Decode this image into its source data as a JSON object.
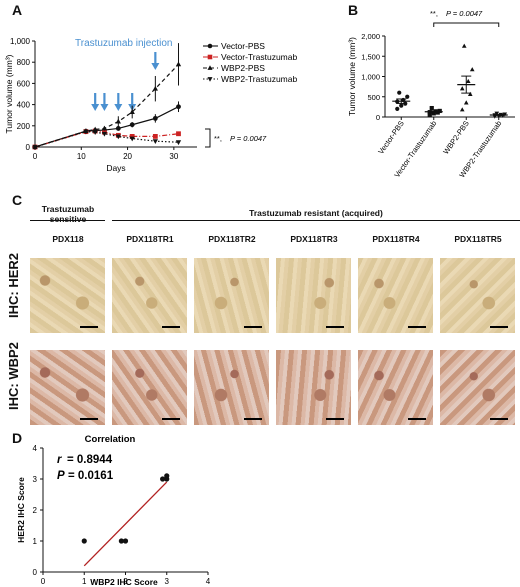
{
  "panel_letters": {
    "a": "A",
    "b": "B",
    "c": "C",
    "d": "D"
  },
  "colors": {
    "injection": "#4a90d0",
    "fit": "#b22222",
    "black": "#111111",
    "red": "#cc2222",
    "he2_tissue": "#d9c79a",
    "wbp2_tissue": "#c79a80"
  },
  "panelA": {
    "injection_label": "Trastuzumab injection",
    "sig_label": "**,",
    "p_label": "P = 0.0047"
  },
  "panelB": {
    "sig_label": "**,",
    "p_label": "P = 0.0047"
  },
  "panelC": {
    "sensitive_header_l1": "Trastuzumab",
    "sensitive_header_l2": "sensitive",
    "resistant_header": "Trastuzumab resistant (acquired)",
    "columns": [
      "PDX118",
      "PDX118TR1",
      "PDX118TR2",
      "PDX118TR3",
      "PDX118TR4",
      "PDX118TR5"
    ],
    "rows": [
      "IHC: HER2",
      "IHC: WBP2"
    ]
  },
  "panelD": {
    "r_label": "r",
    "r_value": "= 0.8944",
    "p_label": "P",
    "p_value": "= 0.0161"
  },
  "chart_data": [
    {
      "type": "line",
      "title": "",
      "xlabel": "Days",
      "ylabel": "Tumor volume (mm³)",
      "xlim": [
        0,
        35
      ],
      "ylim": [
        0,
        1000
      ],
      "xticks": [
        0,
        10,
        20,
        30
      ],
      "yticks": [
        0,
        200,
        400,
        600,
        800,
        1000
      ],
      "yticklabels": [
        "0",
        "200",
        "400",
        "600",
        "800",
        "1,000"
      ],
      "injection_days": [
        13,
        15,
        18,
        21,
        26
      ],
      "legend_position": "top-right",
      "series": [
        {
          "name": "Vector-PBS",
          "marker": "circle",
          "style": "solid",
          "color": "#111111",
          "x": [
            0,
            11,
            13,
            15,
            18,
            21,
            26,
            31
          ],
          "y": [
            0,
            150,
            155,
            160,
            175,
            210,
            270,
            380
          ],
          "err": [
            0,
            10,
            10,
            15,
            20,
            25,
            40,
            50
          ]
        },
        {
          "name": "Vector-Trastuzumab",
          "marker": "square",
          "style": "dashdot",
          "color": "#cc2222",
          "x": [
            0,
            11,
            13,
            15,
            18,
            21,
            26,
            31
          ],
          "y": [
            0,
            145,
            150,
            140,
            110,
            100,
            100,
            125
          ],
          "err": [
            0,
            10,
            10,
            12,
            15,
            12,
            12,
            15
          ]
        },
        {
          "name": "WBP2-PBS",
          "marker": "triangle-up",
          "style": "dashed",
          "color": "#111111",
          "x": [
            0,
            11,
            13,
            15,
            18,
            21,
            26,
            31
          ],
          "y": [
            0,
            150,
            165,
            175,
            240,
            330,
            550,
            780
          ],
          "err": [
            0,
            10,
            15,
            20,
            50,
            60,
            120,
            200
          ]
        },
        {
          "name": "WBP2-Trastuzumab",
          "marker": "triangle-down",
          "style": "dotted",
          "color": "#111111",
          "x": [
            0,
            11,
            13,
            15,
            18,
            21,
            26,
            31
          ],
          "y": [
            0,
            145,
            140,
            125,
            100,
            80,
            55,
            45
          ],
          "err": [
            0,
            10,
            10,
            10,
            12,
            10,
            10,
            8
          ]
        }
      ]
    },
    {
      "type": "scatter",
      "title": "",
      "ylabel": "Tumor volume (mm³)",
      "ylim": [
        0,
        2000
      ],
      "yticks": [
        0,
        500,
        1000,
        1500,
        2000
      ],
      "yticklabels": [
        "0",
        "500",
        "1,000",
        "1,500",
        "2,000"
      ],
      "categories": [
        "Vector-PBS",
        "Vector-Trastuzumab",
        "WBP2-PBS",
        "WBP2-Trastuzumab"
      ],
      "markers": [
        "circle",
        "square",
        "triangle-up",
        "triangle-down"
      ],
      "points": [
        [
          200,
          280,
          330,
          380,
          420,
          500,
          600
        ],
        [
          60,
          90,
          110,
          120,
          140,
          150,
          220
        ],
        [
          180,
          350,
          560,
          700,
          880,
          1170,
          1750
        ],
        [
          20,
          30,
          40,
          50,
          60,
          70,
          90
        ]
      ],
      "mean": [
        390,
        130,
        800,
        50
      ],
      "sem": [
        55,
        20,
        210,
        10
      ]
    },
    {
      "type": "scatter",
      "title": "Correlation",
      "xlabel": "WBP2 IHC Score",
      "ylabel": "HER2 IHC Score",
      "xlim": [
        0,
        4
      ],
      "ylim": [
        0,
        4
      ],
      "xticks": [
        0,
        1,
        2,
        3,
        4
      ],
      "yticks": [
        0,
        1,
        2,
        3,
        4
      ],
      "x": [
        1,
        1.9,
        2.0,
        2.9,
        3.0,
        3.0
      ],
      "y": [
        1,
        1,
        1,
        3,
        3,
        3.1
      ],
      "fit": [
        [
          1,
          0.2
        ],
        [
          3,
          2.9
        ]
      ]
    }
  ]
}
